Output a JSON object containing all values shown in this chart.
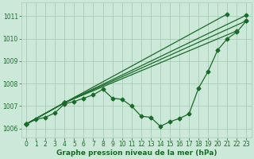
{
  "bg_color": "#cce8d8",
  "grid_color": "#aaccb8",
  "line_color": "#1a6b2a",
  "marker": "D",
  "markersize": 2.5,
  "linewidth": 0.9,
  "xlabel": "Graphe pression niveau de la mer (hPa)",
  "xlabel_fontsize": 6.5,
  "tick_fontsize": 5.5,
  "xlim": [
    -0.5,
    23.5
  ],
  "ylim": [
    1005.6,
    1011.6
  ],
  "yticks": [
    1006,
    1007,
    1008,
    1009,
    1010,
    1011
  ],
  "xticks": [
    0,
    1,
    2,
    3,
    4,
    5,
    6,
    7,
    8,
    9,
    10,
    11,
    12,
    13,
    14,
    15,
    16,
    17,
    18,
    19,
    20,
    21,
    22,
    23
  ],
  "series": [
    [
      1006.2,
      1006.4,
      1006.5,
      1006.7,
      1007.1,
      1007.2,
      1007.35,
      1007.5,
      1007.75,
      1007.35,
      1007.3,
      1007.0,
      1006.55,
      1006.5,
      1006.1,
      1006.3,
      1006.45,
      1006.65,
      1007.8,
      1008.55,
      1009.5,
      1010.0,
      1010.3,
      1010.8
    ],
    [
      1006.2,
      null,
      null,
      null,
      1007.15,
      null,
      null,
      null,
      null,
      null,
      null,
      null,
      null,
      null,
      null,
      null,
      null,
      null,
      null,
      null,
      null,
      1011.1,
      null,
      null
    ],
    [
      1006.2,
      null,
      null,
      null,
      1007.15,
      null,
      null,
      null,
      null,
      null,
      null,
      null,
      null,
      null,
      null,
      null,
      null,
      null,
      null,
      null,
      null,
      null,
      1010.35,
      null
    ],
    [
      1006.2,
      null,
      null,
      null,
      1007.15,
      null,
      null,
      null,
      null,
      null,
      null,
      null,
      null,
      null,
      null,
      null,
      null,
      null,
      null,
      null,
      null,
      null,
      null,
      1010.8
    ],
    [
      1006.2,
      null,
      null,
      null,
      1007.15,
      null,
      null,
      null,
      null,
      null,
      null,
      null,
      null,
      null,
      null,
      null,
      null,
      null,
      null,
      null,
      null,
      null,
      null,
      1011.05
    ]
  ]
}
